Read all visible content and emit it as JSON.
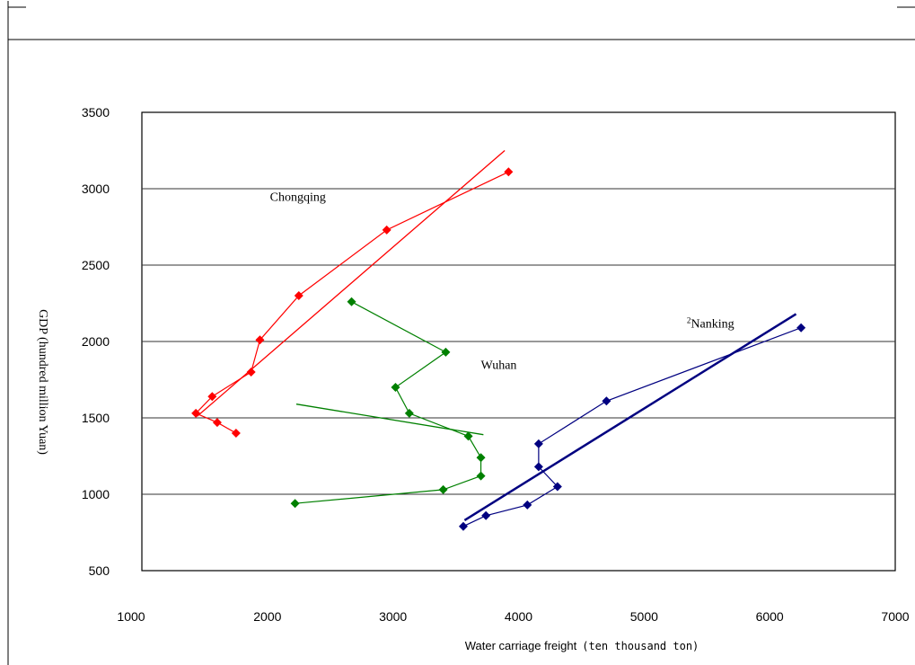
{
  "chart_data": {
    "type": "scatter",
    "title": "",
    "xlabel": "Water carriage freight",
    "xlabel_unit": "(ten thousand ton)",
    "ylabel": "GDP (hundred million Yuan)",
    "xlim": [
      1000,
      7000
    ],
    "ylim": [
      500,
      3500
    ],
    "x_ticks": [
      "1000",
      "2000",
      "3000",
      "4000",
      "5000",
      "6000",
      "7000"
    ],
    "y_ticks": [
      "500",
      "1000",
      "1500",
      "2000",
      "2500",
      "3000",
      "3500"
    ],
    "gridlines_y": [
      1000,
      1500,
      2000,
      2500,
      3000
    ],
    "legend": "none",
    "series": [
      {
        "name": "Chongqing",
        "color": "#ff0000",
        "marker": "diamond",
        "points": [
          {
            "x": 1750,
            "y": 1400
          },
          {
            "x": 1600,
            "y": 1470
          },
          {
            "x": 1430,
            "y": 1530
          },
          {
            "x": 1560,
            "y": 1640
          },
          {
            "x": 1870,
            "y": 1800
          },
          {
            "x": 1940,
            "y": 2010
          },
          {
            "x": 2250,
            "y": 2300
          },
          {
            "x": 2950,
            "y": 2730
          },
          {
            "x": 3920,
            "y": 3110
          }
        ],
        "trendline": [
          {
            "x": 1440,
            "y": 1510
          },
          {
            "x": 3890,
            "y": 3250
          }
        ]
      },
      {
        "name": "Wuhan",
        "color": "#008000",
        "marker": "diamond",
        "points": [
          {
            "x": 2220,
            "y": 940
          },
          {
            "x": 3400,
            "y": 1030
          },
          {
            "x": 3700,
            "y": 1120
          },
          {
            "x": 3700,
            "y": 1240
          },
          {
            "x": 3600,
            "y": 1380
          },
          {
            "x": 3130,
            "y": 1530
          },
          {
            "x": 3020,
            "y": 1700
          },
          {
            "x": 3420,
            "y": 1930
          },
          {
            "x": 2670,
            "y": 2260
          }
        ],
        "trendline": [
          {
            "x": 2230,
            "y": 1590
          },
          {
            "x": 3720,
            "y": 1390
          }
        ]
      },
      {
        "name": "Nanking",
        "color": "#000080",
        "marker": "diamond",
        "points": [
          {
            "x": 3560,
            "y": 790
          },
          {
            "x": 3740,
            "y": 860
          },
          {
            "x": 4070,
            "y": 930
          },
          {
            "x": 4310,
            "y": 1050
          },
          {
            "x": 4160,
            "y": 1180
          },
          {
            "x": 4160,
            "y": 1330
          },
          {
            "x": 4700,
            "y": 1610
          },
          {
            "x": 6250,
            "y": 2090
          }
        ],
        "trendline": [
          {
            "x": 3570,
            "y": 830
          },
          {
            "x": 6210,
            "y": 2180
          }
        ]
      }
    ],
    "annotations": [
      {
        "text": "Chongqing",
        "x": 2020,
        "y": 2920
      },
      {
        "text": "Wuhan",
        "x": 3700,
        "y": 1820
      },
      {
        "text": "2Nanking",
        "x": 5340,
        "y": 2090
      }
    ]
  }
}
